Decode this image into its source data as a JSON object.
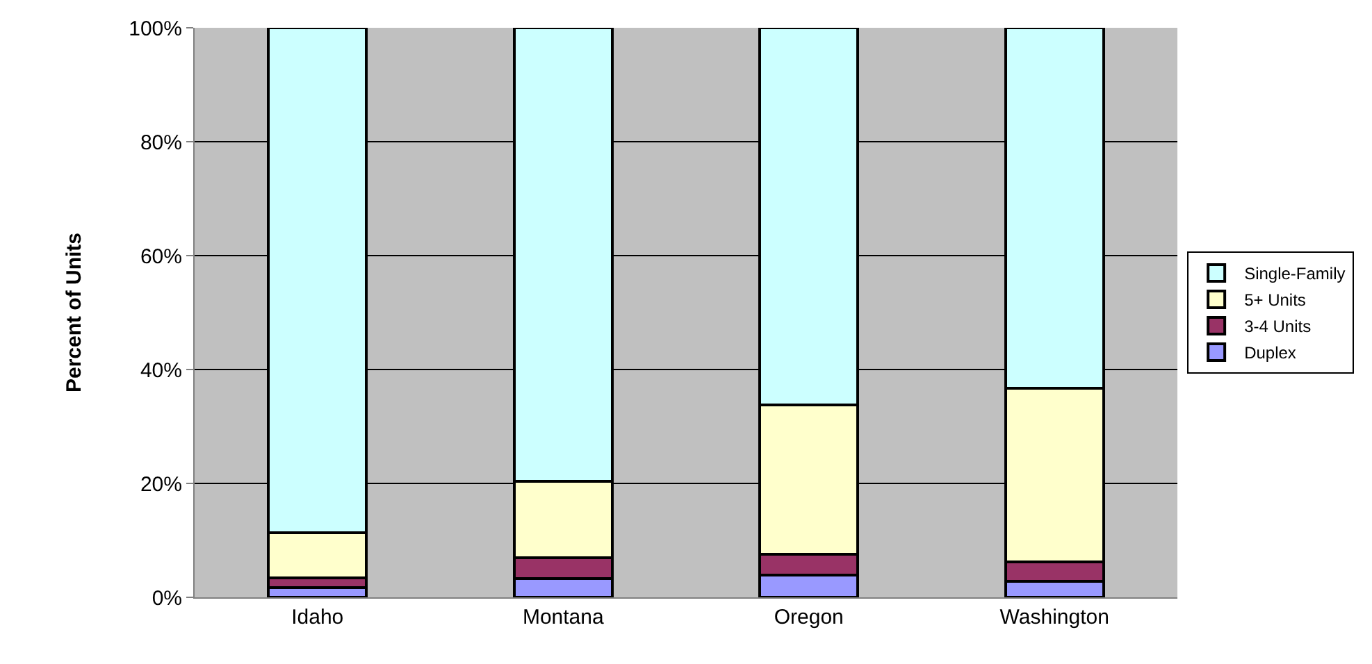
{
  "chart_data": {
    "type": "bar",
    "stacked": true,
    "ylabel": "Percent of Units",
    "categories": [
      "Idaho",
      "Montana",
      "Oregon",
      "Washington"
    ],
    "series": [
      {
        "name": "Duplex",
        "color": "#9999ff",
        "values": [
          1.7,
          3.3,
          3.9,
          2.8
        ]
      },
      {
        "name": "3-4 Units",
        "color": "#993366",
        "values": [
          1.7,
          3.6,
          3.7,
          3.4
        ]
      },
      {
        "name": "5+ Units",
        "color": "#ffffcc",
        "values": [
          8.0,
          13.5,
          26.2,
          30.5
        ]
      },
      {
        "name": "Single-Family",
        "color": "#ccffff",
        "values": [
          88.6,
          79.6,
          66.2,
          63.3
        ]
      }
    ],
    "ylim": [
      0,
      100
    ],
    "yticks": [
      {
        "value": 0,
        "label": "0%"
      },
      {
        "value": 20,
        "label": "20%"
      },
      {
        "value": 40,
        "label": "40%"
      },
      {
        "value": 60,
        "label": "60%"
      },
      {
        "value": 80,
        "label": "80%"
      },
      {
        "value": 100,
        "label": "100%"
      }
    ],
    "grid": "y",
    "legend": "right"
  }
}
